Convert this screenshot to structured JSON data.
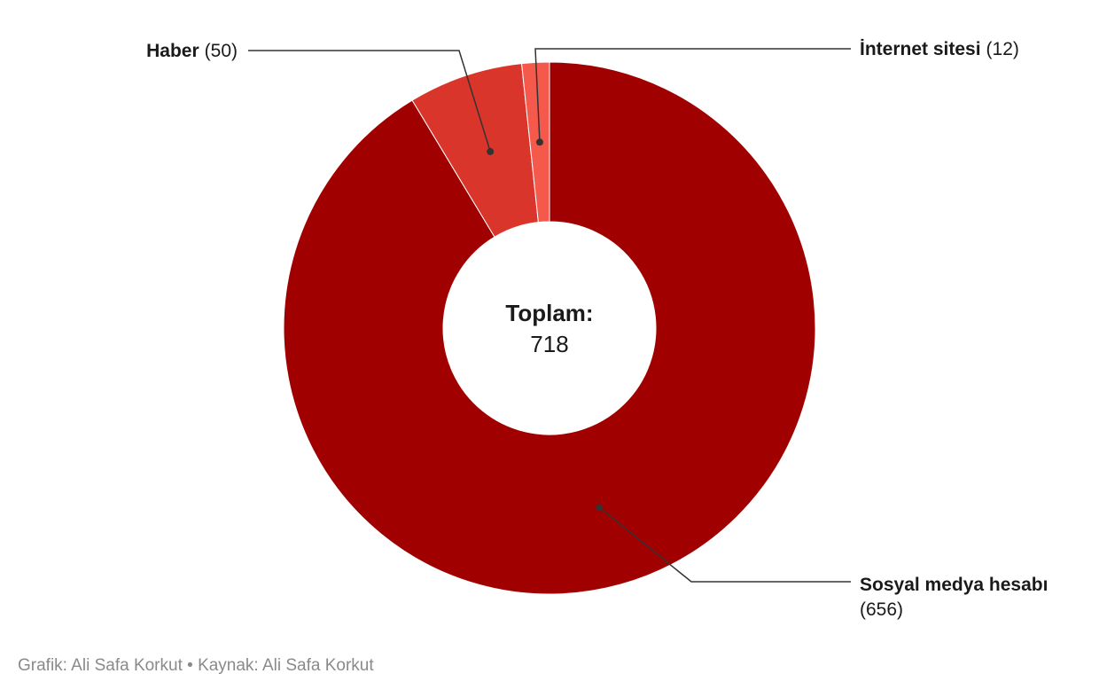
{
  "chart_data": {
    "type": "pie",
    "variant": "donut",
    "categories": [
      "Sosyal medya hesabı",
      "Haber",
      "İnternet sitesi"
    ],
    "values": [
      656,
      50,
      12
    ],
    "colors": [
      "#a10000",
      "#d9352b",
      "#f4594b"
    ],
    "center": {
      "title": "Toplam:",
      "value": "718"
    }
  },
  "footer": {
    "text": "Grafik: Ali Safa Korkut • Kaynak: Ali Safa Korkut"
  }
}
